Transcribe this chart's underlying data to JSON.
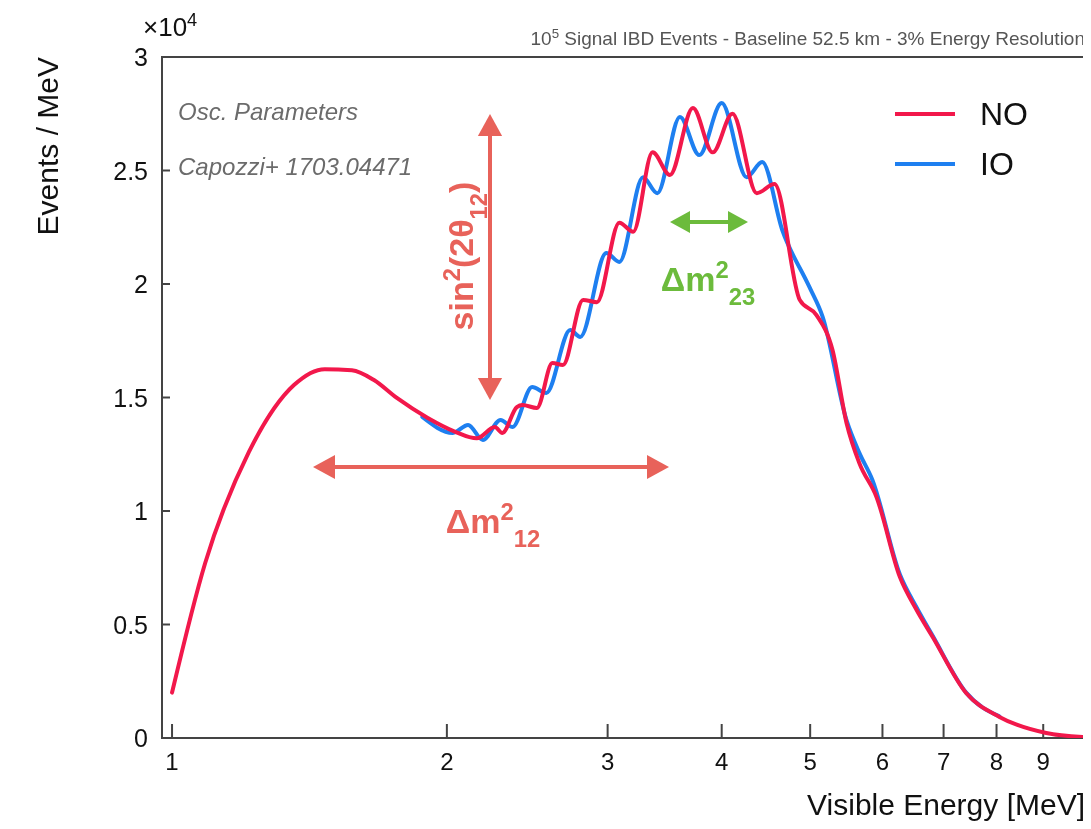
{
  "chart_data": {
    "type": "line",
    "title": "10$^{5}$ Signal IBD Events - Baseline 52.5 km - 3% Energy Resolution",
    "xlabel": "Visible Energy [MeV]",
    "ylabel": "Events / MeV",
    "log": "x",
    "xlim": [
      0.975,
      10
    ],
    "xticks": [
      1,
      2,
      3,
      4,
      5,
      6,
      7,
      8,
      9
    ],
    "ylim": [
      0,
      3
    ],
    "yticks": [
      0,
      0.5,
      1,
      1.5,
      2,
      2.5,
      3
    ],
    "legend": "top right",
    "annotations": [
      "×10$^{4}$",
      "Osc. Parameters",
      "Capozzi+ 1703.04471",
      "sin$^{2}$(2θ$_{12}$)",
      "Δm$^{2}$$_{12}$",
      "Δm$^{2}$$_{23}$"
    ],
    "series": [
      {
        "name": "NO",
        "color": "#f2184b",
        "x": [
          1.0,
          1.087,
          1.214,
          1.36,
          1.47,
          1.574,
          1.664,
          1.763,
          1.906,
          2.04,
          2.157,
          2.257,
          2.3,
          2.386,
          2.42,
          2.51,
          2.61,
          2.68,
          2.82,
          2.92,
          3.09,
          3.2,
          3.36,
          3.51,
          3.72,
          3.91,
          4.11,
          4.37,
          4.57,
          4.87,
          5.08,
          5.29,
          5.48,
          5.66,
          5.91,
          6.27,
          6.54,
          6.81,
          7.41,
          8.06,
          9.07,
          9.94
        ],
        "values": [
          0.2,
          0.77,
          1.26,
          1.555,
          1.625,
          1.62,
          1.577,
          1.498,
          1.41,
          1.35,
          1.32,
          1.37,
          1.344,
          1.458,
          1.467,
          1.454,
          1.652,
          1.643,
          1.93,
          1.92,
          2.27,
          2.23,
          2.58,
          2.48,
          2.775,
          2.58,
          2.75,
          2.4,
          2.44,
          1.93,
          1.863,
          1.709,
          1.388,
          1.211,
          1.062,
          0.709,
          0.564,
          0.445,
          0.198,
          0.093,
          0.022,
          0.004
        ]
      },
      {
        "name": "IO",
        "color": "#1e7ff0",
        "x": [
          1.88,
          2.03,
          2.11,
          2.19,
          2.29,
          2.36,
          2.48,
          2.57,
          2.73,
          2.8,
          2.99,
          3.09,
          3.28,
          3.4,
          3.6,
          3.78,
          4.0,
          4.26,
          4.43,
          4.66,
          4.99,
          5.16,
          5.48,
          5.66,
          5.85,
          6.27,
          6.54,
          6.81,
          7.41,
          8.06
        ],
        "values": [
          1.414,
          1.344,
          1.379,
          1.313,
          1.401,
          1.37,
          1.546,
          1.52,
          1.797,
          1.767,
          2.137,
          2.097,
          2.47,
          2.4,
          2.736,
          2.568,
          2.797,
          2.47,
          2.537,
          2.238,
          1.987,
          1.855,
          1.4,
          1.256,
          1.137,
          0.72,
          0.575,
          0.45,
          0.2,
          0.095
        ]
      }
    ]
  }
}
